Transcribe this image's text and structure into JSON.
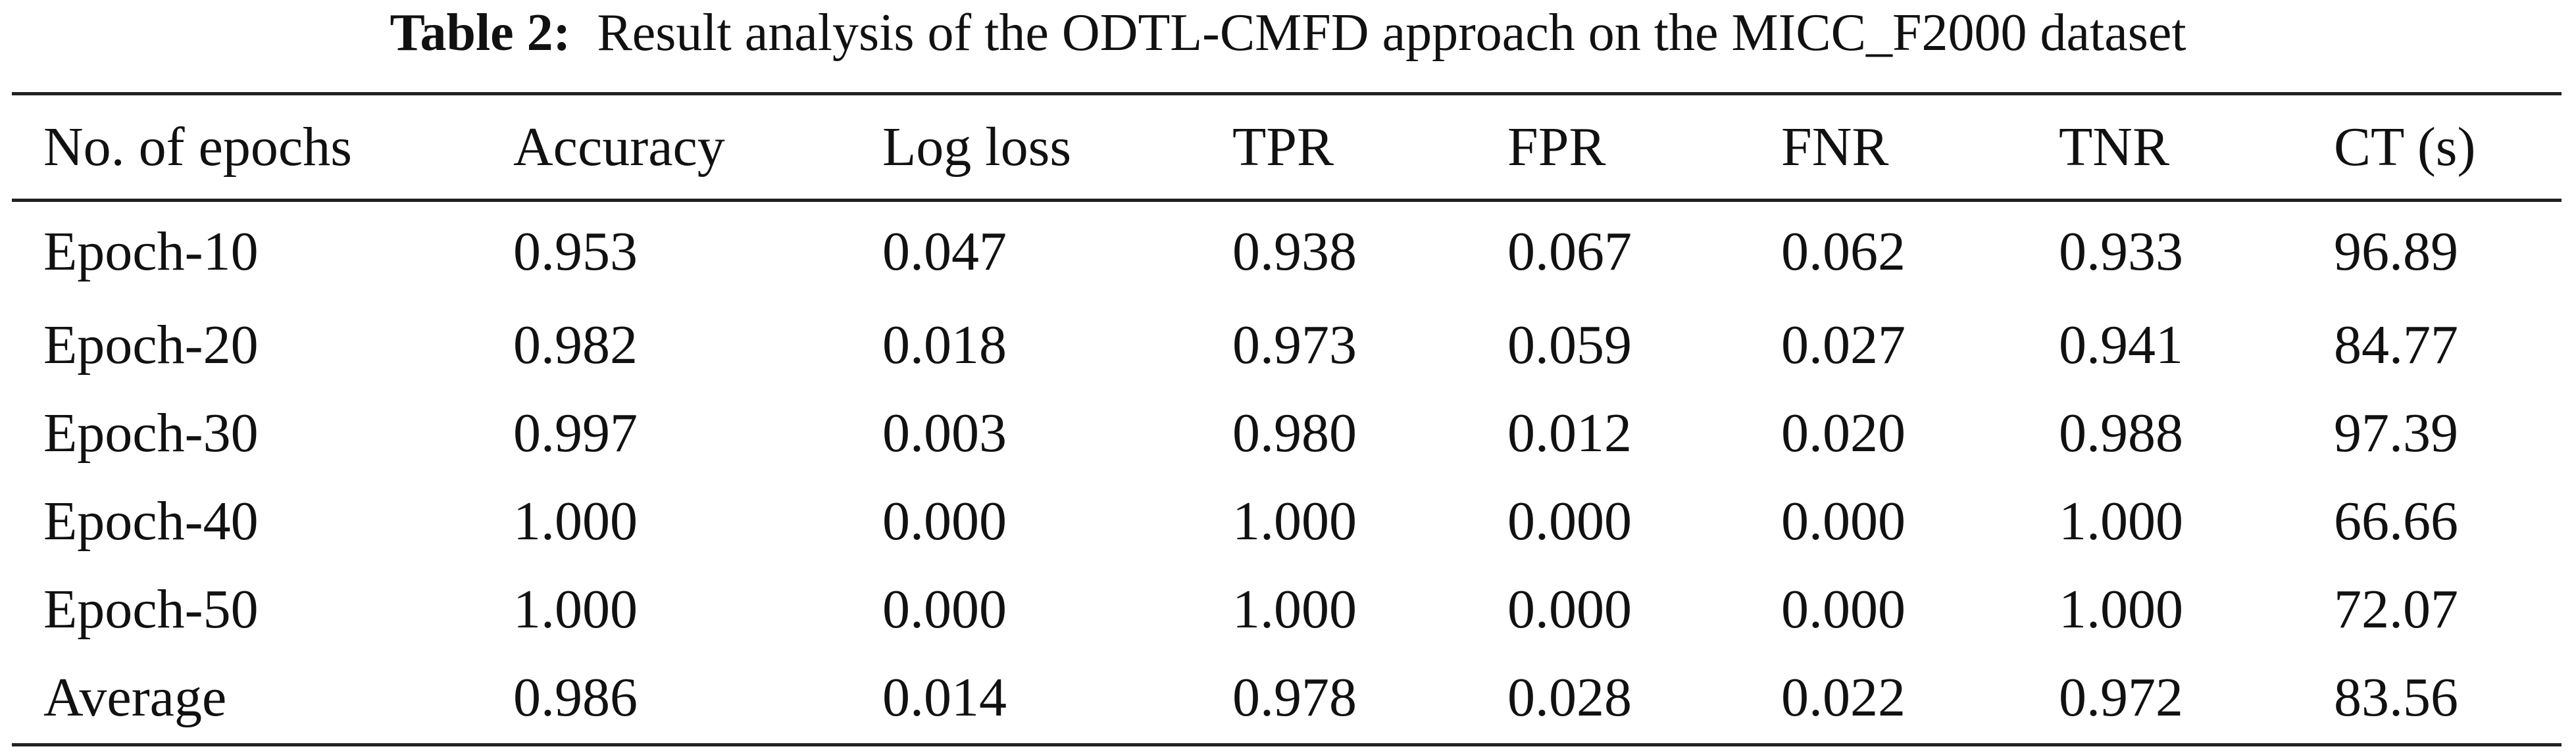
{
  "caption": {
    "label": "Table 2:",
    "text": "Result analysis of the ODTL-CMFD approach on the MICC_F2000 dataset"
  },
  "table": {
    "headers": [
      "No. of epochs",
      "Accuracy",
      "Log loss",
      "TPR",
      "FPR",
      "FNR",
      "TNR",
      "CT (s)"
    ],
    "rows": [
      [
        "Epoch-10",
        "0.953",
        "0.047",
        "0.938",
        "0.067",
        "0.062",
        "0.933",
        "96.89"
      ],
      [
        "Epoch-20",
        "0.982",
        "0.018",
        "0.973",
        "0.059",
        "0.027",
        "0.941",
        "84.77"
      ],
      [
        "Epoch-30",
        "0.997",
        "0.003",
        "0.980",
        "0.012",
        "0.020",
        "0.988",
        "97.39"
      ],
      [
        "Epoch-40",
        "1.000",
        "0.000",
        "1.000",
        "0.000",
        "0.000",
        "1.000",
        "66.66"
      ],
      [
        "Epoch-50",
        "1.000",
        "0.000",
        "1.000",
        "0.000",
        "0.000",
        "1.000",
        "72.07"
      ],
      [
        "Average",
        "0.986",
        "0.014",
        "0.978",
        "0.028",
        "0.022",
        "0.972",
        "83.56"
      ]
    ]
  }
}
